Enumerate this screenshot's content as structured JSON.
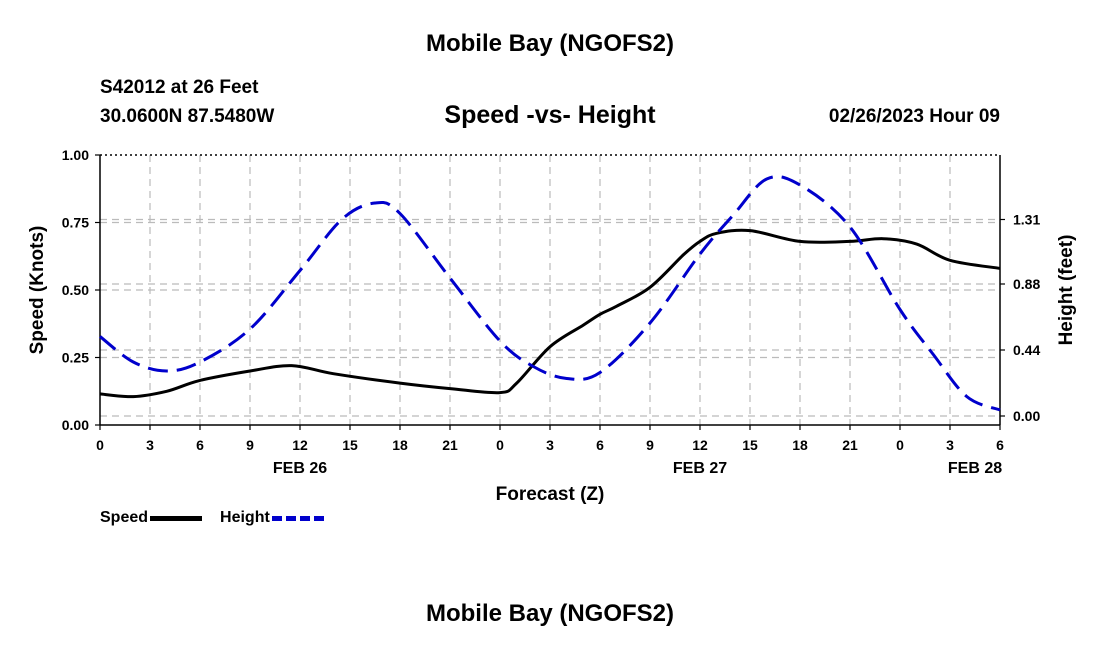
{
  "header": {
    "title": "Mobile Bay (NGOFS2)",
    "station": "S42012 at 26 Feet",
    "coordinates": "30.0600N  87.5480W",
    "subtitle": "Speed -vs- Height",
    "datetime": "02/26/2023 Hour 09",
    "footer_title": "Mobile Bay (NGOFS2)"
  },
  "legend": {
    "speed_label": "Speed",
    "height_label": "Height"
  },
  "colors": {
    "speed": "#000000",
    "height": "#0000cc",
    "grid": "#bbbbbb"
  },
  "chart_data": {
    "type": "line",
    "xlabel": "Forecast (Z)",
    "ylabel": "Speed (Knots)",
    "y2label": "Height (feet)",
    "xlim": [
      0,
      54
    ],
    "ylim": [
      0,
      1.0
    ],
    "y2lim": [
      -0.06,
      1.74
    ],
    "x_tick_values": [
      0,
      3,
      6,
      9,
      12,
      15,
      18,
      21,
      24,
      27,
      30,
      33,
      36,
      39,
      42,
      45,
      48,
      51,
      54
    ],
    "x_tick_labels": [
      "0",
      "3",
      "6",
      "9",
      "12",
      "15",
      "18",
      "21",
      "0",
      "3",
      "6",
      "9",
      "12",
      "15",
      "18",
      "21",
      "0",
      "3",
      "6"
    ],
    "day_labels": [
      {
        "x": 12,
        "label": "FEB 26"
      },
      {
        "x": 36,
        "label": "FEB 27"
      },
      {
        "x": 52.5,
        "label": "FEB 28"
      }
    ],
    "y_ticks": [
      0.0,
      0.25,
      0.5,
      0.75,
      1.0
    ],
    "y_tick_labels": [
      "0.00",
      "0.25",
      "0.50",
      "0.75",
      "1.00"
    ],
    "y2_ticks": [
      0.0,
      0.44,
      0.88,
      1.31
    ],
    "y2_tick_labels": [
      "0.00",
      "0.44",
      "0.88",
      "1.31"
    ],
    "grid": true,
    "legend_position": "bottom-left",
    "series": [
      {
        "name": "Speed",
        "axis": "left",
        "style": "solid",
        "x": [
          0,
          2,
          4,
          6,
          9,
          11.5,
          14,
          18,
          21,
          24,
          25,
          27,
          29,
          30,
          31,
          33,
          35,
          36,
          37,
          39,
          42,
          45,
          47,
          49,
          51,
          54
        ],
        "values": [
          0.115,
          0.105,
          0.125,
          0.165,
          0.2,
          0.22,
          0.19,
          0.155,
          0.135,
          0.12,
          0.155,
          0.29,
          0.37,
          0.41,
          0.44,
          0.51,
          0.63,
          0.68,
          0.71,
          0.72,
          0.68,
          0.68,
          0.69,
          0.67,
          0.61,
          0.58
        ]
      },
      {
        "name": "Height",
        "axis": "right",
        "style": "dashed",
        "x": [
          0,
          2,
          4,
          6,
          9,
          12,
          14.5,
          16.5,
          18,
          21,
          24,
          26,
          28,
          30,
          33,
          36,
          38,
          40,
          42,
          45,
          48,
          50,
          52,
          54
        ],
        "values": [
          0.53,
          0.36,
          0.3,
          0.36,
          0.58,
          0.97,
          1.31,
          1.42,
          1.35,
          0.92,
          0.5,
          0.33,
          0.25,
          0.29,
          0.62,
          1.08,
          1.34,
          1.58,
          1.54,
          1.26,
          0.71,
          0.41,
          0.13,
          0.04
        ]
      }
    ]
  }
}
